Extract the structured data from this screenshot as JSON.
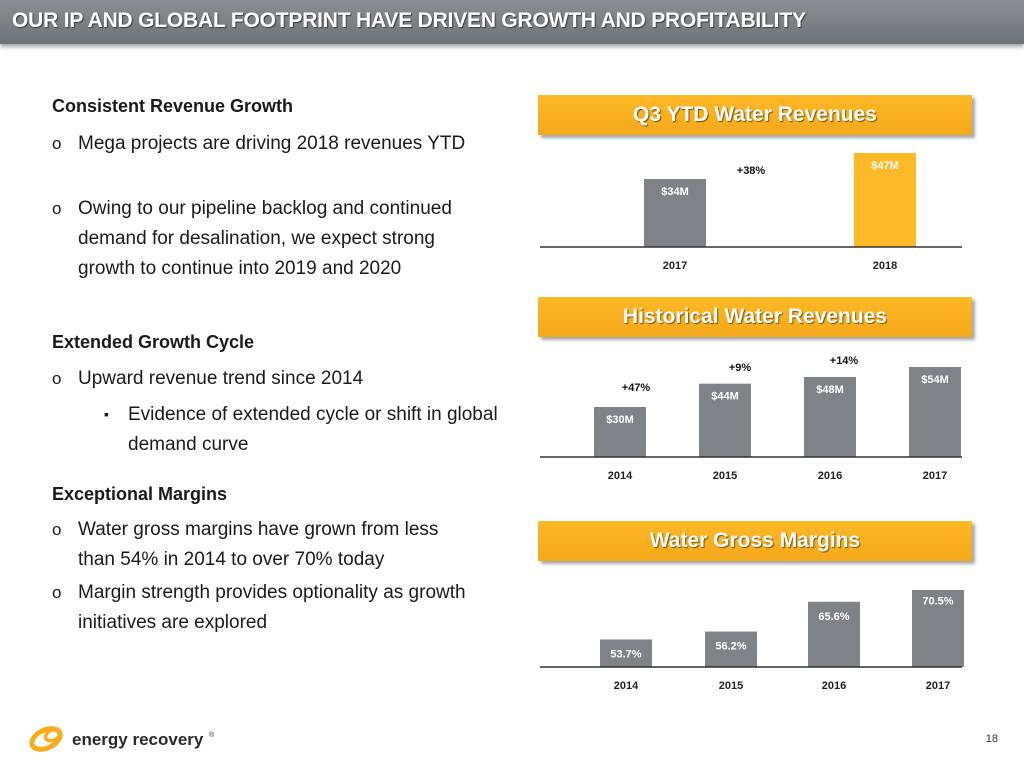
{
  "slide": {
    "title": "OUR IP AND GLOBAL FOOTPRINT HAVE DRIVEN GROWTH AND PROFITABILITY",
    "page_number": "18",
    "logo_text": "energy recovery",
    "logo_mark": "®"
  },
  "left": {
    "sections": [
      {
        "heading": "Consistent Revenue Growth",
        "bullets": [
          "Mega projects are driving 2018 revenues YTD",
          "Owing to our pipeline backlog and continued demand for desalination, we expect strong growth to continue into 2019 and 2020"
        ]
      },
      {
        "heading": "Extended Growth Cycle",
        "bullets": [
          "Upward revenue trend since 2014"
        ],
        "sub_bullets": [
          "Evidence of extended cycle or shift in global demand curve"
        ]
      },
      {
        "heading": "Exceptional Margins",
        "bullets": [
          "Water gross margins have grown from less than 54% in 2014 to over 70% today",
          "Margin strength provides optionality as growth initiatives are explored"
        ]
      }
    ],
    "bullet_glyph": "o",
    "sub_bullet_glyph": "▪"
  },
  "colors": {
    "gray_bar": "#7f8387",
    "gold_bar": "#fdb927",
    "title_gold": "#f7ad1c",
    "axis": "#333333"
  },
  "chart_data": [
    {
      "type": "bar",
      "title": "Q3 YTD Water Revenues",
      "categories": [
        "2017",
        "2018"
      ],
      "values": [
        34,
        47
      ],
      "value_labels": [
        "$34M",
        "$47M"
      ],
      "annotations": [
        "+38%"
      ],
      "units": "$M",
      "ylim": [
        0,
        50
      ],
      "highlight_index": 1
    },
    {
      "type": "bar",
      "title": "Historical Water Revenues",
      "categories": [
        "2014",
        "2015",
        "2016",
        "2017"
      ],
      "values": [
        30,
        44,
        48,
        54
      ],
      "value_labels": [
        "$30M",
        "$44M",
        "$48M",
        "$54M"
      ],
      "annotations": [
        "+47%",
        "+9%",
        "+14%"
      ],
      "units": "$M",
      "ylim": [
        0,
        60
      ]
    },
    {
      "type": "bar",
      "title": "Water Gross Margins",
      "categories": [
        "2014",
        "2015",
        "2016",
        "2017"
      ],
      "values": [
        53.7,
        56.2,
        65.6,
        70.5
      ],
      "value_labels": [
        "53.7%",
        "56.2%",
        "65.6%",
        "70.5%"
      ],
      "units": "%",
      "ylim": [
        0,
        75
      ]
    }
  ]
}
